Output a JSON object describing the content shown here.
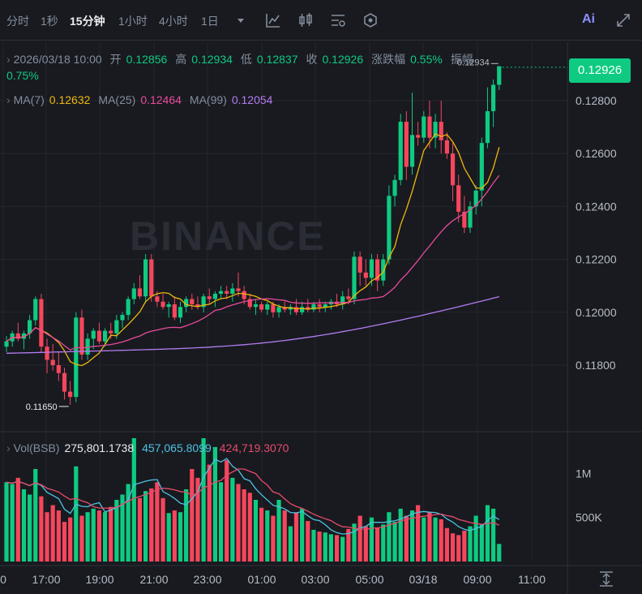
{
  "toolbar": {
    "intervals": [
      "分时",
      "1秒",
      "15分钟",
      "1小时",
      "4小时",
      "1日"
    ],
    "active_interval": "15分钟",
    "icons": [
      "dropdown-caret-icon",
      "indicator-chart-icon",
      "candle-style-icon",
      "settings-sliders-icon",
      "hexagon-tools-icon",
      "ai-icon",
      "expand-icon"
    ],
    "ai_label": "Ai"
  },
  "info": {
    "datetime": "2026/03/18 10:00",
    "open_label": "开",
    "open": "0.12856",
    "high_label": "高",
    "high": "0.12934",
    "low_label": "低",
    "low": "0.12837",
    "close_label": "收",
    "close": "0.12926",
    "change_label": "涨跌幅",
    "change": "0.55%",
    "amplitude_label": "振幅",
    "amplitude": "0.75%"
  },
  "ma": {
    "ma7_label": "MA(7)",
    "ma7_value": "0.12632",
    "ma25_label": "MA(25)",
    "ma25_value": "0.12464",
    "ma99_label": "MA(99)",
    "ma99_value": "0.12054"
  },
  "volume": {
    "label": "Vol(BSB)",
    "v1": "275,801.1738",
    "v2": "457,065.8099",
    "v3": "424,719.3070"
  },
  "watermark": "BINANCE",
  "current_price": "0.12926",
  "colors": {
    "up": "#0ecb81",
    "down": "#f6465d",
    "ma7": "#f0b90b",
    "ma25": "#e84b9a",
    "ma99": "#b47cf0",
    "vol_ma1": "#4fc2e1",
    "vol_ma2": "#e84b6a",
    "bg": "#181a20"
  },
  "chart_data": {
    "type": "candlestick",
    "x_ticks": [
      "0",
      "17:00",
      "19:00",
      "21:00",
      "23:00",
      "01:00",
      "03:00",
      "05:00",
      "03/18",
      "09:00",
      "11:00"
    ],
    "y_ticks": [
      "0.12800",
      "0.12600",
      "0.12400",
      "0.12200",
      "0.12000",
      "0.11800"
    ],
    "ylim": [
      0.1164,
      0.1299
    ],
    "vol_ticks": [
      "1M",
      "500K"
    ],
    "vol_ylim": [
      0,
      1400000
    ],
    "high_marker": "0.12934",
    "low_marker": "0.11650",
    "candles": [
      {
        "o": 0.1187,
        "h": 0.1191,
        "l": 0.1185,
        "c": 0.1189
      },
      {
        "o": 0.1189,
        "h": 0.1193,
        "l": 0.1187,
        "c": 0.1192
      },
      {
        "o": 0.1192,
        "h": 0.1196,
        "l": 0.1189,
        "c": 0.119
      },
      {
        "o": 0.119,
        "h": 0.1193,
        "l": 0.1186,
        "c": 0.1192
      },
      {
        "o": 0.1192,
        "h": 0.1199,
        "l": 0.119,
        "c": 0.1197
      },
      {
        "o": 0.1197,
        "h": 0.1206,
        "l": 0.1195,
        "c": 0.1205
      },
      {
        "o": 0.1205,
        "h": 0.1207,
        "l": 0.1185,
        "c": 0.1187
      },
      {
        "o": 0.1187,
        "h": 0.119,
        "l": 0.1177,
        "c": 0.1182
      },
      {
        "o": 0.1182,
        "h": 0.1188,
        "l": 0.1178,
        "c": 0.118
      },
      {
        "o": 0.118,
        "h": 0.1185,
        "l": 0.1174,
        "c": 0.1177
      },
      {
        "o": 0.1177,
        "h": 0.1179,
        "l": 0.1167,
        "c": 0.117
      },
      {
        "o": 0.117,
        "h": 0.1174,
        "l": 0.1165,
        "c": 0.1168
      },
      {
        "o": 0.1168,
        "h": 0.12,
        "l": 0.1166,
        "c": 0.1198
      },
      {
        "o": 0.1198,
        "h": 0.1201,
        "l": 0.1182,
        "c": 0.1184
      },
      {
        "o": 0.1184,
        "h": 0.1192,
        "l": 0.1182,
        "c": 0.119
      },
      {
        "o": 0.119,
        "h": 0.1194,
        "l": 0.1186,
        "c": 0.1193
      },
      {
        "o": 0.1193,
        "h": 0.1196,
        "l": 0.1188,
        "c": 0.1189
      },
      {
        "o": 0.1189,
        "h": 0.1194,
        "l": 0.1187,
        "c": 0.1193
      },
      {
        "o": 0.1193,
        "h": 0.1196,
        "l": 0.119,
        "c": 0.1192
      },
      {
        "o": 0.1192,
        "h": 0.1199,
        "l": 0.119,
        "c": 0.1197
      },
      {
        "o": 0.1197,
        "h": 0.12,
        "l": 0.1194,
        "c": 0.1199
      },
      {
        "o": 0.1199,
        "h": 0.1206,
        "l": 0.1197,
        "c": 0.1205
      },
      {
        "o": 0.1205,
        "h": 0.1211,
        "l": 0.1203,
        "c": 0.1209
      },
      {
        "o": 0.1209,
        "h": 0.1214,
        "l": 0.1205,
        "c": 0.1206
      },
      {
        "o": 0.1206,
        "h": 0.1222,
        "l": 0.1204,
        "c": 0.122
      },
      {
        "o": 0.122,
        "h": 0.1222,
        "l": 0.1204,
        "c": 0.1206
      },
      {
        "o": 0.1206,
        "h": 0.1208,
        "l": 0.1202,
        "c": 0.1204
      },
      {
        "o": 0.1204,
        "h": 0.1207,
        "l": 0.1201,
        "c": 0.1202
      },
      {
        "o": 0.1202,
        "h": 0.1204,
        "l": 0.1198,
        "c": 0.1203
      },
      {
        "o": 0.1203,
        "h": 0.1206,
        "l": 0.1197,
        "c": 0.1198
      },
      {
        "o": 0.1198,
        "h": 0.1204,
        "l": 0.1196,
        "c": 0.1202
      },
      {
        "o": 0.1202,
        "h": 0.1206,
        "l": 0.12,
        "c": 0.1205
      },
      {
        "o": 0.1205,
        "h": 0.1207,
        "l": 0.1201,
        "c": 0.1203
      },
      {
        "o": 0.1203,
        "h": 0.1206,
        "l": 0.1201,
        "c": 0.1202
      },
      {
        "o": 0.1202,
        "h": 0.1207,
        "l": 0.12,
        "c": 0.1206
      },
      {
        "o": 0.1206,
        "h": 0.1209,
        "l": 0.1203,
        "c": 0.1205
      },
      {
        "o": 0.1205,
        "h": 0.1208,
        "l": 0.1202,
        "c": 0.1207
      },
      {
        "o": 0.1207,
        "h": 0.121,
        "l": 0.1205,
        "c": 0.1208
      },
      {
        "o": 0.1208,
        "h": 0.121,
        "l": 0.1205,
        "c": 0.1207
      },
      {
        "o": 0.1207,
        "h": 0.1211,
        "l": 0.1204,
        "c": 0.1209
      },
      {
        "o": 0.1209,
        "h": 0.1215,
        "l": 0.1206,
        "c": 0.1208
      },
      {
        "o": 0.1208,
        "h": 0.121,
        "l": 0.1203,
        "c": 0.1205
      },
      {
        "o": 0.1205,
        "h": 0.1207,
        "l": 0.1201,
        "c": 0.1202
      },
      {
        "o": 0.1202,
        "h": 0.1205,
        "l": 0.1199,
        "c": 0.1203
      },
      {
        "o": 0.1203,
        "h": 0.1204,
        "l": 0.12,
        "c": 0.1201
      },
      {
        "o": 0.1201,
        "h": 0.1204,
        "l": 0.1199,
        "c": 0.1203
      },
      {
        "o": 0.1203,
        "h": 0.1204,
        "l": 0.1198,
        "c": 0.12
      },
      {
        "o": 0.12,
        "h": 0.1203,
        "l": 0.1198,
        "c": 0.1202
      },
      {
        "o": 0.1202,
        "h": 0.1204,
        "l": 0.12,
        "c": 0.1201
      },
      {
        "o": 0.1201,
        "h": 0.1203,
        "l": 0.1199,
        "c": 0.1202
      },
      {
        "o": 0.1202,
        "h": 0.1205,
        "l": 0.1199,
        "c": 0.12
      },
      {
        "o": 0.12,
        "h": 0.1204,
        "l": 0.1199,
        "c": 0.1202
      },
      {
        "o": 0.1202,
        "h": 0.1205,
        "l": 0.12,
        "c": 0.1201
      },
      {
        "o": 0.1201,
        "h": 0.1204,
        "l": 0.12,
        "c": 0.1203
      },
      {
        "o": 0.1203,
        "h": 0.1205,
        "l": 0.12,
        "c": 0.1202
      },
      {
        "o": 0.1202,
        "h": 0.1204,
        "l": 0.12,
        "c": 0.1203
      },
      {
        "o": 0.1203,
        "h": 0.1205,
        "l": 0.1201,
        "c": 0.1204
      },
      {
        "o": 0.1204,
        "h": 0.1207,
        "l": 0.1202,
        "c": 0.1203
      },
      {
        "o": 0.1203,
        "h": 0.1208,
        "l": 0.1201,
        "c": 0.1206
      },
      {
        "o": 0.1206,
        "h": 0.1209,
        "l": 0.1203,
        "c": 0.1205
      },
      {
        "o": 0.1205,
        "h": 0.1223,
        "l": 0.1203,
        "c": 0.1221
      },
      {
        "o": 0.1221,
        "h": 0.1223,
        "l": 0.121,
        "c": 0.1215
      },
      {
        "o": 0.1215,
        "h": 0.122,
        "l": 0.121,
        "c": 0.1213
      },
      {
        "o": 0.1213,
        "h": 0.1222,
        "l": 0.121,
        "c": 0.122
      },
      {
        "o": 0.122,
        "h": 0.1222,
        "l": 0.1208,
        "c": 0.1212
      },
      {
        "o": 0.1212,
        "h": 0.1222,
        "l": 0.121,
        "c": 0.122
      },
      {
        "o": 0.122,
        "h": 0.1248,
        "l": 0.1218,
        "c": 0.1244
      },
      {
        "o": 0.1244,
        "h": 0.1252,
        "l": 0.124,
        "c": 0.125
      },
      {
        "o": 0.125,
        "h": 0.1275,
        "l": 0.1248,
        "c": 0.1272
      },
      {
        "o": 0.1272,
        "h": 0.1276,
        "l": 0.125,
        "c": 0.1255
      },
      {
        "o": 0.1255,
        "h": 0.1283,
        "l": 0.1252,
        "c": 0.1267
      },
      {
        "o": 0.1267,
        "h": 0.1272,
        "l": 0.1263,
        "c": 0.1266
      },
      {
        "o": 0.1266,
        "h": 0.1276,
        "l": 0.1264,
        "c": 0.1274
      },
      {
        "o": 0.1274,
        "h": 0.128,
        "l": 0.1262,
        "c": 0.1266
      },
      {
        "o": 0.1266,
        "h": 0.1275,
        "l": 0.1262,
        "c": 0.1272
      },
      {
        "o": 0.1272,
        "h": 0.128,
        "l": 0.126,
        "c": 0.1265
      },
      {
        "o": 0.1265,
        "h": 0.1268,
        "l": 0.1258,
        "c": 0.126
      },
      {
        "o": 0.126,
        "h": 0.1264,
        "l": 0.1242,
        "c": 0.1248
      },
      {
        "o": 0.1248,
        "h": 0.1252,
        "l": 0.1234,
        "c": 0.1238
      },
      {
        "o": 0.1238,
        "h": 0.1244,
        "l": 0.123,
        "c": 0.1232
      },
      {
        "o": 0.1232,
        "h": 0.1242,
        "l": 0.123,
        "c": 0.124
      },
      {
        "o": 0.124,
        "h": 0.1248,
        "l": 0.1237,
        "c": 0.1246
      },
      {
        "o": 0.1246,
        "h": 0.1266,
        "l": 0.124,
        "c": 0.1264
      },
      {
        "o": 0.1264,
        "h": 0.1285,
        "l": 0.1262,
        "c": 0.1276
      },
      {
        "o": 0.1276,
        "h": 0.1288,
        "l": 0.127,
        "c": 0.1286
      },
      {
        "o": 0.1286,
        "h": 0.1293,
        "l": 0.1284,
        "c": 0.1293
      }
    ],
    "volumes": [
      900000,
      880000,
      950000,
      820000,
      760000,
      1050000,
      740000,
      560000,
      640000,
      580000,
      450000,
      500000,
      1080000,
      520000,
      560000,
      600000,
      580000,
      560000,
      620000,
      700000,
      760000,
      880000,
      1400000,
      720000,
      800000,
      830000,
      900000,
      720000,
      550000,
      580000,
      560000,
      820000,
      1050000,
      950000,
      1400000,
      1100000,
      1300000,
      900000,
      1150000,
      950000,
      880000,
      820000,
      780000,
      700000,
      610000,
      580000,
      520000,
      700000,
      580000,
      400000,
      560000,
      600000,
      460000,
      360000,
      340000,
      330000,
      310000,
      300000,
      280000,
      370000,
      430000,
      520000,
      400000,
      500000,
      380000,
      420000,
      560000,
      450000,
      600000,
      520000,
      580000,
      640000,
      500000,
      560000,
      500000,
      480000,
      380000,
      320000,
      300000,
      350000,
      400000,
      520000,
      420000,
      640000,
      600000,
      200000
    ]
  }
}
